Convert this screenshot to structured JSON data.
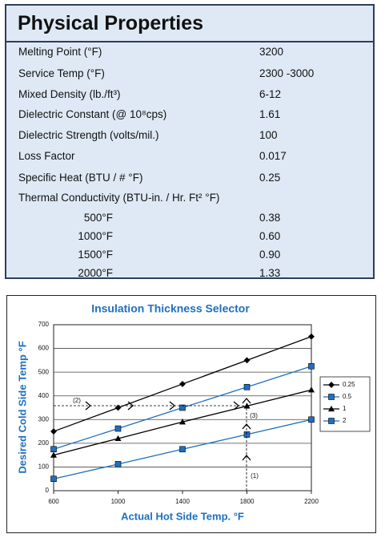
{
  "header": {
    "title": "Physical Properties"
  },
  "table": {
    "rows": [
      [
        "Melting Point  (°F)",
        "3200"
      ],
      [
        "Service Temp (°F)",
        "2300 -3000"
      ],
      [
        "Mixed Density (lb./ft³)",
        "6-12"
      ],
      [
        "Dielectric Constant  (@ 10⁸cps)",
        "1.61"
      ],
      [
        "Dielectric Strength (volts/mil.)",
        "100"
      ],
      [
        "Loss Factor",
        "0.017"
      ],
      [
        "Specific Heat  (BTU / # °F)",
        "0.25"
      ],
      [
        "Thermal Conductivity (BTU-in. / Hr. Ft² °F)"
      ],
      [
        "500°F",
        "0.38"
      ],
      [
        "1000°F",
        "0.60"
      ],
      [
        "1500°F",
        "0.90"
      ],
      [
        "2000°F",
        "1.33"
      ]
    ]
  },
  "chart_data": {
    "type": "line",
    "title": "Insulation Thickness Selector",
    "x_label": "Actual Hot Side Temp. °F",
    "y_label": "Desired Cold Side Temp °F",
    "x": [
      600,
      1000,
      1400,
      1800,
      2200
    ],
    "series": [
      {
        "name": "0.25",
        "color": "#000000",
        "marker": "diamond",
        "values": [
          250,
          350,
          450,
          550,
          650
        ]
      },
      {
        "name": "0.5",
        "color": "#1f6fc0",
        "marker": "square",
        "values": [
          175,
          262,
          350,
          437,
          525
        ]
      },
      {
        "name": "1",
        "color": "#000000",
        "marker": "triangle",
        "values": [
          150,
          220,
          290,
          357,
          425
        ]
      },
      {
        "name": "2",
        "color": "#1f6fc0",
        "marker": "square",
        "values": [
          50,
          112,
          175,
          237,
          300
        ]
      }
    ],
    "xlim": [
      600,
      2200
    ],
    "xticks": [
      600,
      1000,
      1400,
      1800,
      2200
    ],
    "ylim": [
      0,
      700
    ],
    "yticks": [
      0,
      100,
      200,
      300,
      400,
      500,
      600,
      700
    ],
    "grid": true,
    "legend": "right",
    "annotations": [
      "(1)",
      "(2)",
      "(3)"
    ]
  }
}
